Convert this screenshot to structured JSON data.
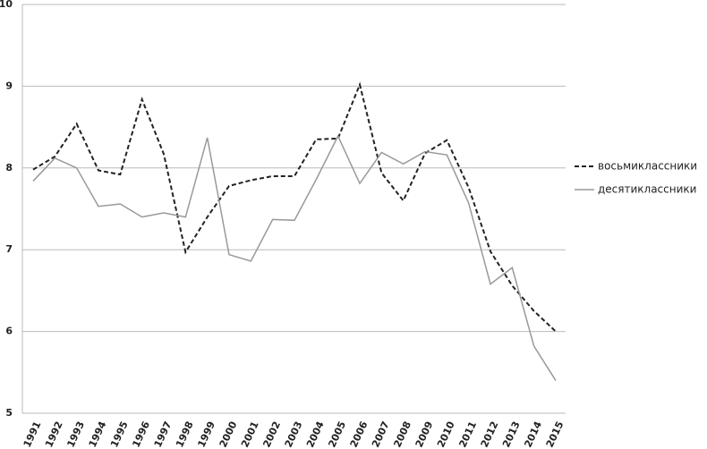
{
  "chart_data": {
    "type": "line",
    "categories": [
      "1991",
      "1992",
      "1993",
      "1994",
      "1995",
      "1996",
      "1997",
      "1998",
      "1999",
      "2000",
      "2001",
      "2002",
      "2003",
      "2004",
      "2005",
      "2006",
      "2007",
      "2008",
      "2009",
      "2010",
      "2011",
      "2012",
      "2013",
      "2014",
      "2015"
    ],
    "series": [
      {
        "name": "восьмиклассники",
        "color": "#222222",
        "dashed": true,
        "values": [
          7.98,
          8.14,
          8.54,
          7.97,
          7.92,
          8.84,
          8.17,
          6.97,
          7.4,
          7.78,
          7.85,
          7.9,
          7.9,
          8.35,
          8.36,
          9.02,
          7.94,
          7.6,
          8.18,
          8.34,
          7.76,
          6.98,
          6.56,
          6.25,
          6.0
        ]
      },
      {
        "name": "десятиклассники",
        "color": "#999999",
        "dashed": false,
        "values": [
          7.84,
          8.12,
          8.0,
          7.53,
          7.56,
          7.4,
          7.45,
          7.4,
          8.37,
          6.94,
          6.86,
          7.37,
          7.36,
          7.86,
          8.39,
          7.81,
          8.19,
          8.05,
          8.2,
          8.16,
          7.57,
          6.58,
          6.78,
          5.82,
          5.4
        ]
      }
    ],
    "ylim": [
      5,
      10
    ],
    "yticks": [
      5,
      6,
      7,
      8,
      9,
      10
    ],
    "grid": true,
    "legend": "right"
  }
}
